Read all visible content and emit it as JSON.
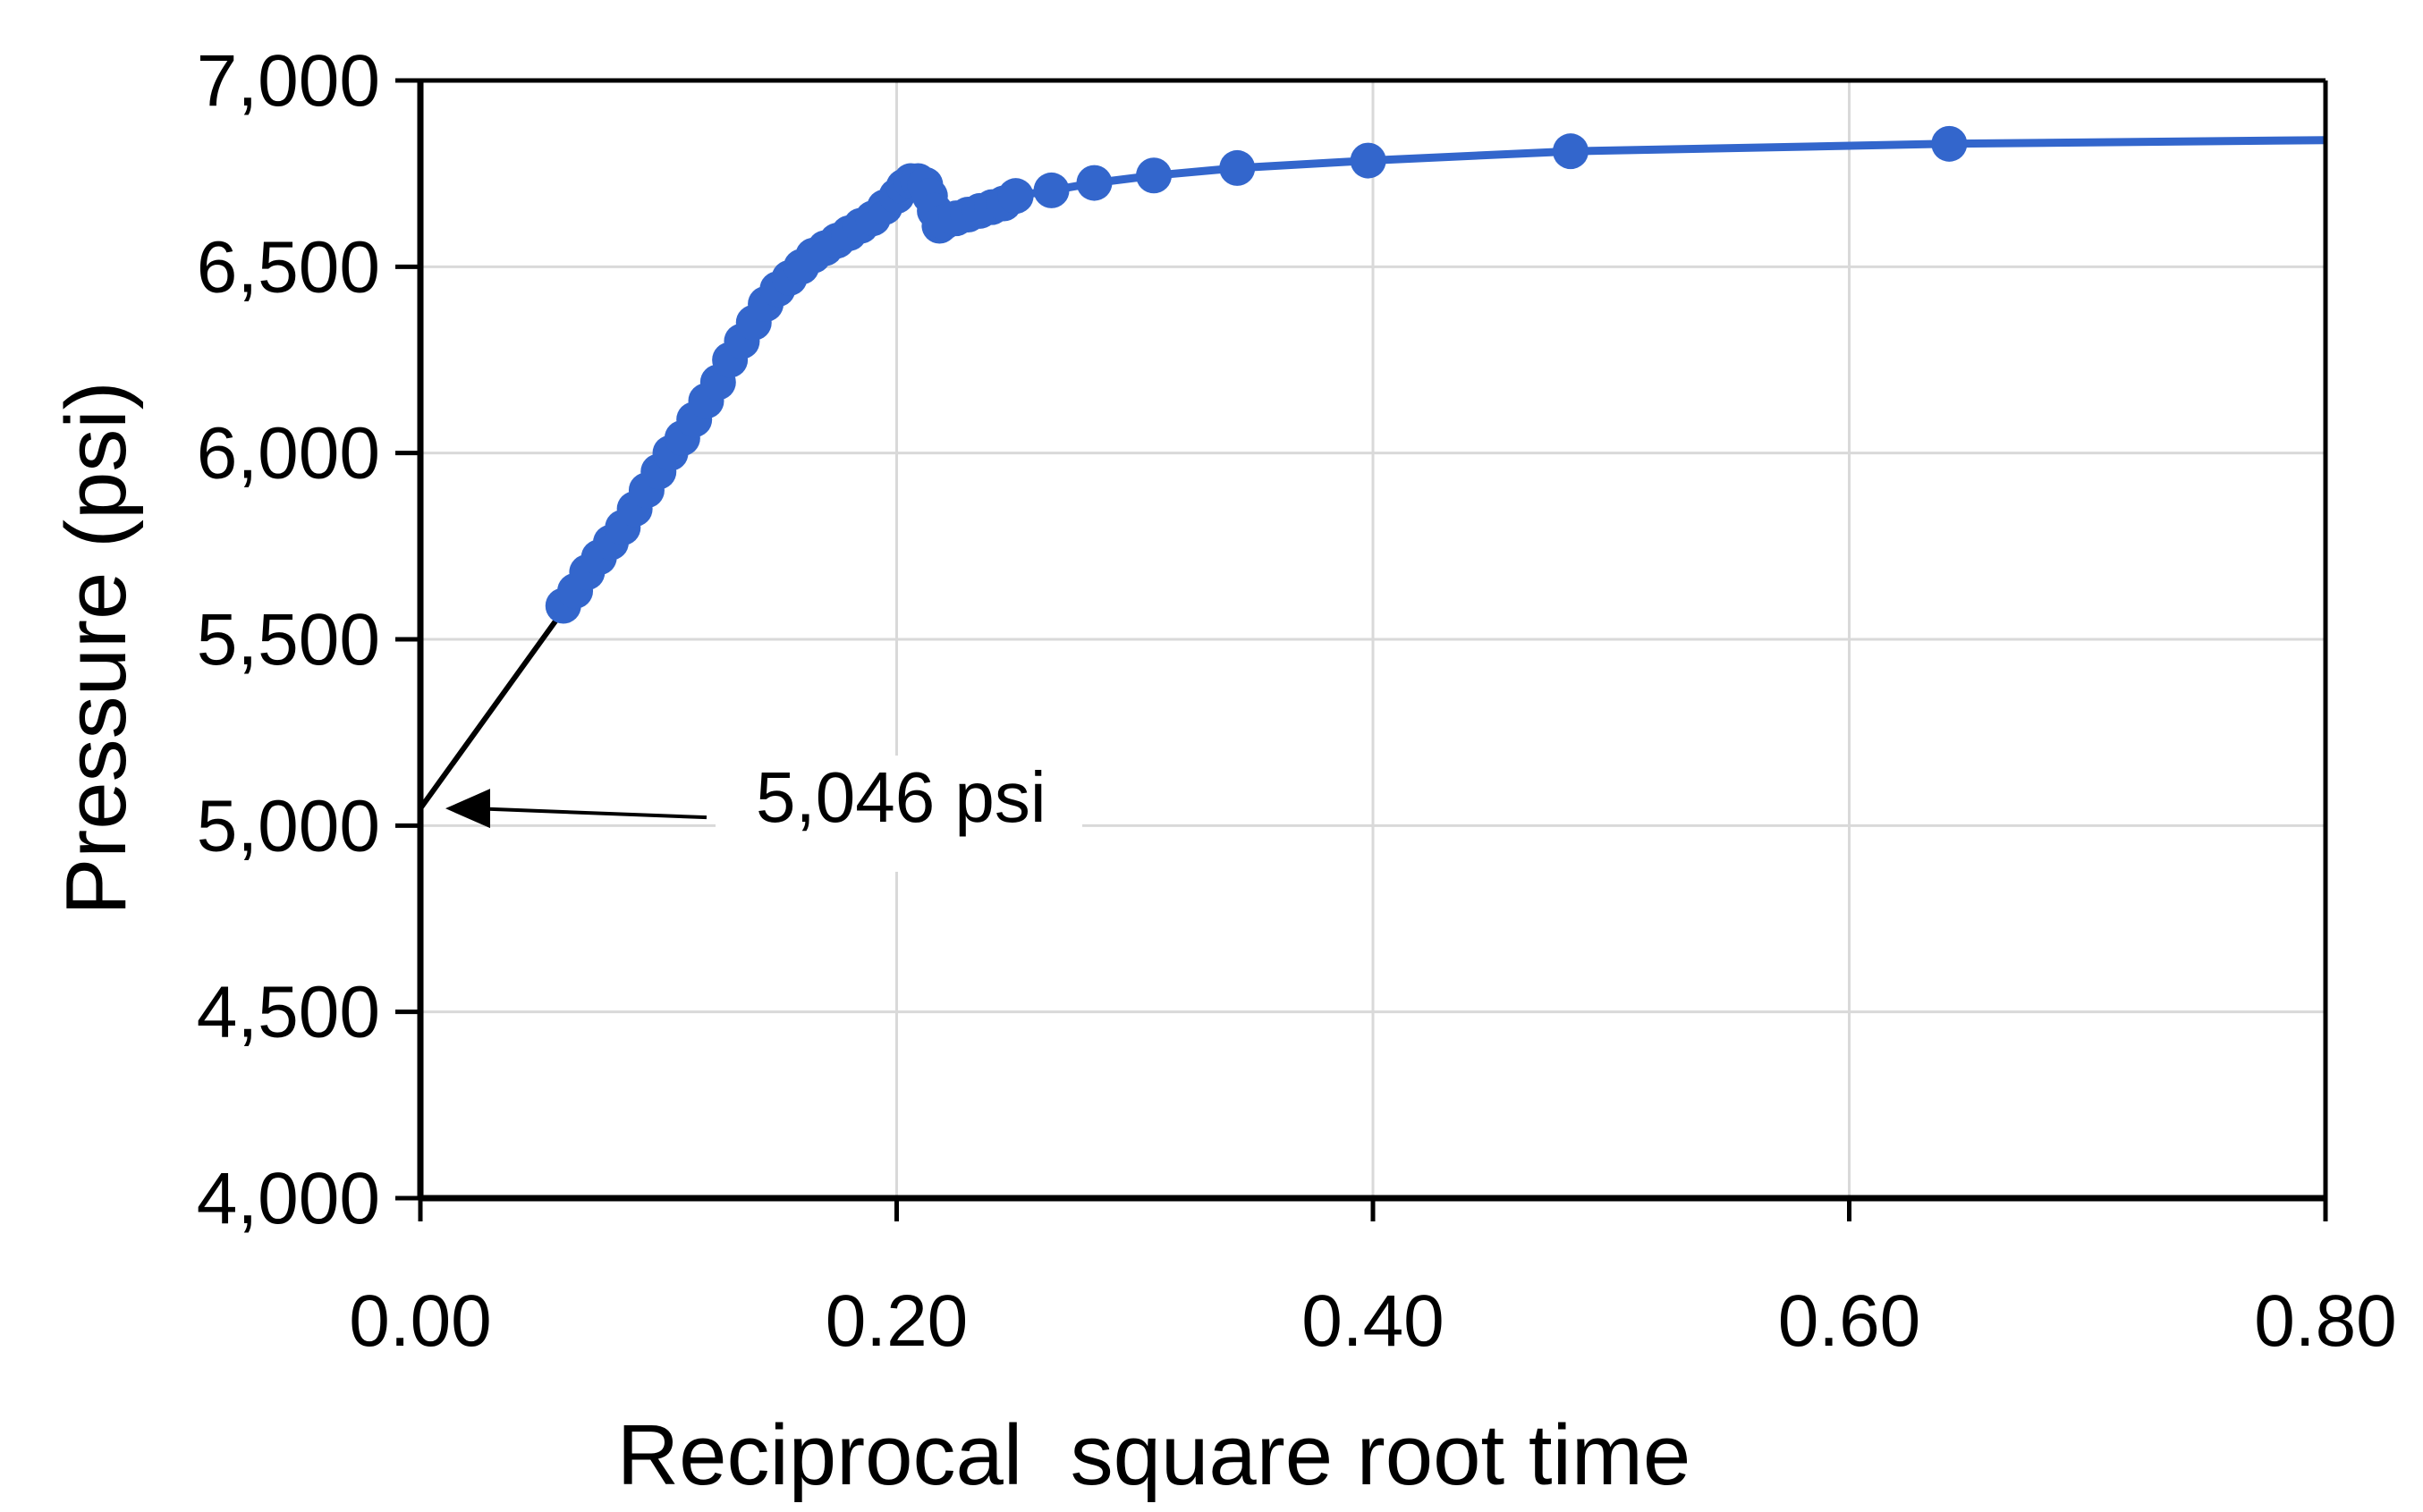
{
  "chart_data": {
    "type": "scatter",
    "title": "",
    "xlabel": "Reciprocal  square root time",
    "ylabel": "Pressure (psi)",
    "xlim": [
      0,
      0.8
    ],
    "ylim": [
      4000,
      7000
    ],
    "x_ticks": [
      0,
      0.2,
      0.4,
      0.6,
      0.8
    ],
    "x_tick_labels": [
      "0.00",
      "0.20",
      "0.40",
      "0.60",
      "0.80"
    ],
    "y_ticks": [
      4000,
      4500,
      5000,
      5500,
      6000,
      6500,
      7000
    ],
    "y_tick_labels": [
      "4,000",
      "4,500",
      "5,000",
      "5,500",
      "6,000",
      "6,500",
      "7,000"
    ],
    "grid": true,
    "colors": {
      "series": "#3366cc",
      "axis": "#000000",
      "grid": "#d9d9d9",
      "fit_line": "#000000"
    },
    "series": [
      {
        "type": "line+markers",
        "x": [
          0.06,
          0.065,
          0.07,
          0.075,
          0.08,
          0.085,
          0.09,
          0.095,
          0.1,
          0.105,
          0.11,
          0.115,
          0.12,
          0.125,
          0.13,
          0.135,
          0.14,
          0.145,
          0.15,
          0.155,
          0.16,
          0.165,
          0.17,
          0.175,
          0.18,
          0.185,
          0.19,
          0.195,
          0.2,
          0.203,
          0.206,
          0.209,
          0.212,
          0.214,
          0.216,
          0.218,
          0.22,
          0.225,
          0.23,
          0.235,
          0.24,
          0.245,
          0.25,
          0.265,
          0.283,
          0.308,
          0.343,
          0.398,
          0.483,
          0.642,
          0.8
        ],
        "y": [
          5590,
          5630,
          5680,
          5720,
          5760,
          5800,
          5850,
          5900,
          5950,
          6000,
          6040,
          6090,
          6140,
          6190,
          6250,
          6300,
          6350,
          6400,
          6440,
          6470,
          6500,
          6530,
          6550,
          6570,
          6590,
          6610,
          6630,
          6660,
          6690,
          6715,
          6730,
          6730,
          6720,
          6690,
          6650,
          6610,
          6620,
          6630,
          6640,
          6650,
          6660,
          6670,
          6690,
          6705,
          6725,
          6745,
          6765,
          6785,
          6810,
          6830,
          6840
        ]
      }
    ],
    "fit_line": {
      "x": [
        0,
        0.12
      ],
      "y": [
        5046,
        6110
      ]
    },
    "annotations": [
      {
        "text": "5,046 psi",
        "x": 0,
        "y": 5046
      }
    ]
  }
}
